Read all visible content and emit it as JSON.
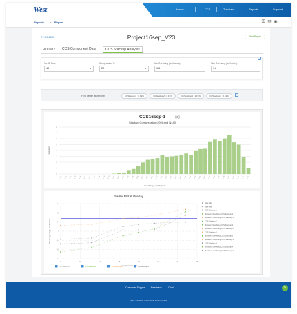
{
  "header": {
    "logo": "West",
    "nav": [
      {
        "label": "Home"
      },
      {
        "label": "CCS"
      },
      {
        "label": "Tutorials"
      },
      {
        "label": "Reports"
      },
      {
        "label": "Support"
      }
    ],
    "breadcrumb": {
      "first": "Reports",
      "sep": ">",
      "second": "Report"
    }
  },
  "page": {
    "date": "27-09-2022",
    "title": "Project16sep_V23",
    "print_label": "Print Report",
    "tabs": [
      {
        "label": "ummary"
      },
      {
        "label": "CCS Component Data"
      },
      {
        "label": "CCS Stackup Analysis"
      }
    ],
    "active_tab": 2
  },
  "fields": [
    {
      "label": "No. Of Bins",
      "value": "40"
    },
    {
      "label": "Compression %",
      "value": "20"
    },
    {
      "label": "Min Overhang (cm/inches)",
      "value": "0.8"
    },
    {
      "label": "Max Overhang (cm/inches)",
      "value": "1.8"
    }
  ],
  "stackup": {
    "label": "Fit to center (ascending)",
    "chips": [
      "CCStackup1 : 0.09%",
      "CCStackup2 : 0.15%",
      "CCStackup3 : 1.19%",
      "CCStackup4 : 0.01%"
    ]
  },
  "chart_data": [
    {
      "type": "bar",
      "title": "CCS16sep-1",
      "subtitle": "Stackup Compression=20% and N=40",
      "xlabel": "Overhang/Length (mm)",
      "ylabel": "Frequency",
      "ylim": [
        0,
        8
      ],
      "categories": [
        "-2.00",
        "-1.91",
        "-1.82",
        "-1.73",
        "-1.64",
        "-1.55",
        "-1.46",
        "-1.37",
        "-1.28",
        "-1.19",
        "-1.10",
        "-1.01",
        "-0.92",
        "-0.83",
        "-0.74",
        "-0.65",
        "-0.56",
        "-0.47",
        "-0.38",
        "-0.29",
        "-0.20",
        "-0.11",
        "-0.02",
        "0.07",
        "0.16",
        "0.25",
        "0.34",
        "0.43",
        "0.52",
        "0.61",
        "0.70",
        "0.79",
        "0.88",
        "0.97",
        "1.06",
        "1.15",
        "1.24",
        "1.33",
        "1.42",
        "1.51"
      ],
      "values": [
        0,
        0,
        0,
        0,
        0,
        0,
        0,
        0,
        0,
        0,
        0,
        0.05,
        0.12,
        0.25,
        0.55,
        0.85,
        1.3,
        1.95,
        2.4,
        2.55,
        2.7,
        3.25,
        2.85,
        3.0,
        3.1,
        3.3,
        3.5,
        3.25,
        3.9,
        4.25,
        4.3,
        5.45,
        5.85,
        5.6,
        6.05,
        6.7,
        5.4,
        5.0,
        2.85,
        1.05
      ],
      "yticks": [
        "0",
        "1",
        "2",
        "3",
        "4",
        "5",
        "6",
        "7",
        "8"
      ]
    },
    {
      "type": "scatter",
      "title": "Sadler Plot & Overlay",
      "xlabel": "Compression (%)",
      "ylabel": "Overhang/Length (cm/inches)",
      "xlim": [
        0,
        35
      ],
      "ylim": [
        -1.2,
        1.2
      ],
      "xticks": [
        "0",
        "5",
        "10",
        "15",
        "20",
        "25",
        "30",
        "35"
      ],
      "ref_lines": [
        {
          "name": "Max overhang",
          "y": 0.55,
          "color": "#3b3bd8"
        },
        {
          "name": "Min overhang",
          "y": -0.25,
          "color": "#f4a261"
        }
      ],
      "series": [
        {
          "name": "CCS Stackup 1",
          "color": "#777777",
          "points": [
            [
              0,
              -0.55
            ],
            [
              8,
              -0.5
            ],
            [
              16,
              0.05
            ],
            [
              20,
              0.05
            ],
            [
              24,
              0.05
            ],
            [
              32,
              0.7
            ]
          ]
        },
        {
          "name": "CCS Stackup 2",
          "color": "#6dbb3f",
          "points": [
            [
              0,
              -0.9
            ],
            [
              8,
              -0.7
            ],
            [
              16,
              -0.2
            ],
            [
              20,
              -0.05
            ],
            [
              24,
              0.1
            ],
            [
              32,
              0.85
            ]
          ]
        },
        {
          "name": "CCS Stackup 3",
          "color": "#f4a261",
          "points": [
            [
              0,
              0.25
            ],
            [
              8,
              0.3
            ],
            [
              16,
              0.55
            ],
            [
              20,
              0.6
            ],
            [
              24,
              0.7
            ],
            [
              32,
              0.95
            ]
          ]
        },
        {
          "name": "CCS Stackup 4",
          "color": "#888888",
          "points": [
            [
              0,
              -0.35
            ],
            [
              8,
              -0.3
            ],
            [
              16,
              0.2
            ],
            [
              20,
              0.3
            ],
            [
              24,
              0.35
            ],
            [
              32,
              0.4
            ]
          ]
        }
      ],
      "legend": [
        "Bore Min",
        "Bore Max",
        "CCS Stackup 1",
        "Minimum Overhang CCS Stackup 1",
        "Maximum Overhang CCS Stackup 1",
        "CCS Stackup 2",
        "Minimum Overhang CCS Stackup 2",
        "Maximum Overhang CCS Stackup 2",
        "CCS Stackup 3",
        "Minimum Overhang CCS Stackup 3",
        "Maximum Overhang CCS Stackup 3",
        "CCS Stackup 4",
        "Minimum Overhang CCS Stackup 4",
        "Maximum Overhang CCS Stackup 4"
      ],
      "bottom_legend": [
        {
          "label": "CCStackup1",
          "color": "#999999"
        },
        {
          "label": "CCStackup2",
          "color": "#6dbb3f"
        },
        {
          "label": "CCStackup3",
          "color": "#f4a261"
        },
        {
          "label": "CCStackup4",
          "color": "#666666"
        }
      ]
    }
  ],
  "footer": {
    "links": [
      {
        "label": "Customer Support"
      },
      {
        "label": "Feedback"
      },
      {
        "label": "Chat"
      }
    ],
    "copyright": "2022 ECAMP • MOBILE PLATFORM",
    "chat_icon": "chat-icon"
  }
}
